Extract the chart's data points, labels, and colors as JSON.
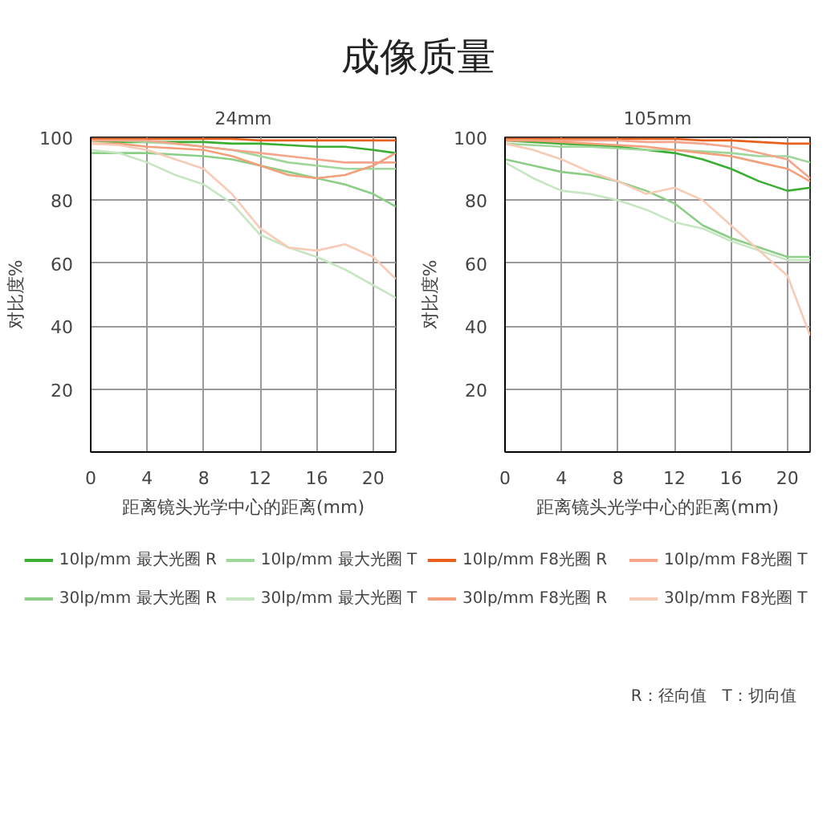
{
  "chart_data": [
    {
      "type": "line",
      "title": "24mm",
      "xlabel": "距离镜头光学中心的距离(mm)",
      "ylabel": "对比度%",
      "annotations": [
        "成像质量"
      ],
      "x": [
        0,
        2,
        4,
        6,
        8,
        10,
        12,
        14,
        16,
        18,
        20,
        21.6
      ],
      "xlim": [
        0,
        21.6
      ],
      "ylim": [
        0,
        100
      ],
      "xticks": [
        0,
        4,
        8,
        12,
        16,
        20
      ],
      "yticks": [
        20,
        40,
        60,
        80,
        100
      ],
      "grid": true,
      "legend": "bottom",
      "series": [
        {
          "name": "10lp/mm 最大光圈 R",
          "color": "#3cae34",
          "values": [
            99,
            98.5,
            98.5,
            98.5,
            98.5,
            98,
            98,
            97.5,
            97,
            97,
            96,
            95
          ]
        },
        {
          "name": "10lp/mm 最大光圈 T",
          "color": "#9fd79a",
          "values": [
            99,
            99,
            98.5,
            98,
            97,
            96,
            94,
            92,
            91,
            90,
            90,
            90
          ]
        },
        {
          "name": "10lp/mm F8光圈 R",
          "color": "#e8601c",
          "values": [
            99.5,
            99.5,
            99.5,
            99.5,
            99.5,
            99.5,
            99,
            99,
            99,
            99,
            99,
            99
          ]
        },
        {
          "name": "10lp/mm F8光圈 T",
          "color": "#f4a58a",
          "values": [
            99,
            99,
            99,
            98,
            97,
            96,
            95,
            94,
            93,
            92,
            92,
            92
          ]
        },
        {
          "name": "30lp/mm 最大光圈 R",
          "color": "#8dce86",
          "values": [
            95,
            95,
            95,
            94.5,
            94,
            93,
            91,
            89,
            87,
            85,
            82,
            78
          ]
        },
        {
          "name": "30lp/mm 最大光圈 T",
          "color": "#c6e6c2",
          "values": [
            96,
            95,
            92,
            88,
            85,
            79,
            69,
            65,
            62,
            58,
            53,
            49
          ]
        },
        {
          "name": "30lp/mm F8光圈 R",
          "color": "#f29f7a",
          "values": [
            98,
            98,
            97,
            96.5,
            96,
            94,
            91,
            88,
            87,
            88,
            91,
            95
          ]
        },
        {
          "name": "30lp/mm F8光圈 T",
          "color": "#f7cbb6",
          "values": [
            98,
            97.5,
            96,
            93,
            90,
            82,
            71,
            65,
            64,
            66,
            62,
            55
          ]
        }
      ]
    },
    {
      "type": "line",
      "title": "105mm",
      "xlabel": "距离镜头光学中心的距离(mm)",
      "ylabel": "对比度%",
      "annotations": [
        "R：径向值　T：切向值"
      ],
      "x": [
        0,
        2,
        4,
        6,
        8,
        10,
        12,
        14,
        16,
        18,
        20,
        21.6
      ],
      "xlim": [
        0,
        21.6
      ],
      "ylim": [
        0,
        100
      ],
      "xticks": [
        0,
        4,
        8,
        12,
        16,
        20
      ],
      "yticks": [
        20,
        40,
        60,
        80,
        100
      ],
      "grid": true,
      "legend": "bottom",
      "series": [
        {
          "name": "10lp/mm 最大光圈 R",
          "color": "#3cae34",
          "values": [
            99,
            98.5,
            98,
            97.5,
            97,
            96,
            95,
            93,
            90,
            86,
            83,
            84
          ]
        },
        {
          "name": "10lp/mm 最大光圈 T",
          "color": "#9fd79a",
          "values": [
            98,
            97.5,
            97,
            97,
            96.5,
            96,
            96,
            95.5,
            95,
            94,
            94,
            92
          ]
        },
        {
          "name": "10lp/mm F8光圈 R",
          "color": "#e8601c",
          "values": [
            99.5,
            99.5,
            99.5,
            99.5,
            99.5,
            99.5,
            99.5,
            99,
            99,
            98.5,
            98,
            98
          ]
        },
        {
          "name": "10lp/mm F8光圈 T",
          "color": "#f4a58a",
          "values": [
            99,
            99,
            99,
            99,
            99,
            98.5,
            98.5,
            98,
            97,
            95,
            93,
            87
          ]
        },
        {
          "name": "30lp/mm 最大光圈 R",
          "color": "#8dce86",
          "values": [
            93,
            91,
            89,
            88,
            86,
            83,
            79,
            72,
            68,
            65,
            62,
            62
          ]
        },
        {
          "name": "30lp/mm 最大光圈 T",
          "color": "#c6e6c2",
          "values": [
            92,
            87,
            83,
            82,
            80,
            77,
            73,
            71,
            67,
            64,
            61,
            61
          ]
        },
        {
          "name": "30lp/mm F8光圈 R",
          "color": "#f29f7a",
          "values": [
            99,
            99,
            98.5,
            98,
            97.5,
            97,
            96,
            95,
            94,
            92,
            90,
            86
          ]
        },
        {
          "name": "30lp/mm F8光圈 T",
          "color": "#f7cbb6",
          "values": [
            98,
            96,
            93,
            89,
            86,
            82,
            84,
            80,
            72,
            64,
            56,
            37
          ]
        }
      ]
    }
  ]
}
